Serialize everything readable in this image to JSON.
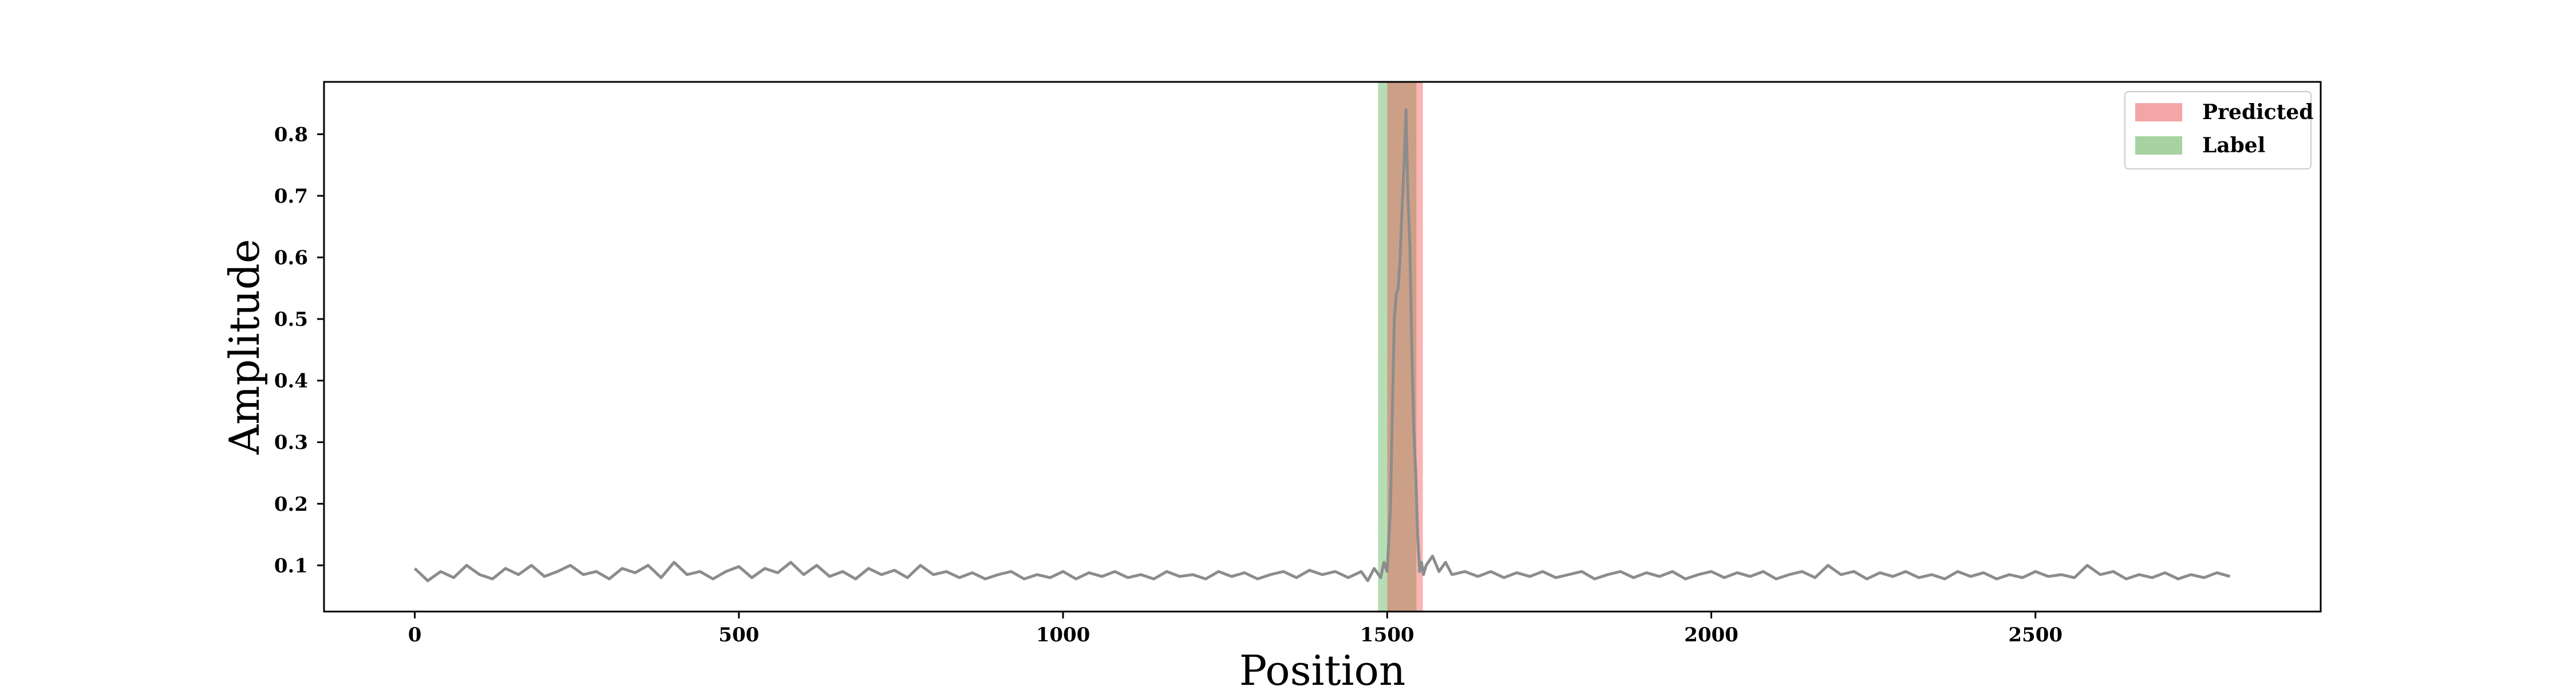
{
  "chart_data": {
    "type": "line",
    "title": "",
    "xlabel": "Position",
    "ylabel": "Amplitude",
    "xlim": [
      -140,
      2940
    ],
    "ylim": [
      0.025,
      0.885
    ],
    "x_ticks": [
      0,
      500,
      1000,
      1500,
      2000,
      2500
    ],
    "y_ticks": [
      0.1,
      0.2,
      0.3,
      0.4,
      0.5,
      0.6,
      0.7,
      0.8
    ],
    "grid": false,
    "legend_position": "upper right",
    "series": [
      {
        "color": "#8c8c8c",
        "x": [
          0,
          20,
          40,
          60,
          80,
          100,
          120,
          140,
          160,
          180,
          200,
          220,
          240,
          260,
          280,
          300,
          320,
          340,
          360,
          380,
          400,
          420,
          440,
          460,
          480,
          500,
          520,
          540,
          560,
          580,
          600,
          620,
          640,
          660,
          680,
          700,
          720,
          740,
          760,
          780,
          800,
          820,
          840,
          860,
          880,
          900,
          920,
          940,
          960,
          980,
          1000,
          1020,
          1040,
          1060,
          1080,
          1100,
          1120,
          1140,
          1160,
          1180,
          1200,
          1220,
          1240,
          1260,
          1280,
          1300,
          1320,
          1340,
          1360,
          1380,
          1400,
          1420,
          1440,
          1460,
          1470,
          1480,
          1490,
          1495,
          1500,
          1505,
          1508,
          1511,
          1514,
          1517,
          1520,
          1523,
          1526,
          1529,
          1532,
          1535,
          1538,
          1541,
          1544,
          1547,
          1550,
          1553,
          1556,
          1560,
          1570,
          1580,
          1590,
          1600,
          1620,
          1640,
          1660,
          1680,
          1700,
          1720,
          1740,
          1760,
          1780,
          1800,
          1820,
          1840,
          1860,
          1880,
          1900,
          1920,
          1940,
          1960,
          1980,
          2000,
          2020,
          2040,
          2060,
          2080,
          2100,
          2120,
          2140,
          2160,
          2180,
          2200,
          2220,
          2240,
          2260,
          2280,
          2300,
          2320,
          2340,
          2360,
          2380,
          2400,
          2420,
          2440,
          2460,
          2480,
          2500,
          2520,
          2540,
          2560,
          2580,
          2600,
          2620,
          2640,
          2660,
          2680,
          2700,
          2720,
          2740,
          2760,
          2780,
          2800
        ],
        "y": [
          0.095,
          0.075,
          0.09,
          0.08,
          0.1,
          0.085,
          0.078,
          0.095,
          0.085,
          0.1,
          0.082,
          0.09,
          0.1,
          0.085,
          0.09,
          0.078,
          0.095,
          0.088,
          0.1,
          0.08,
          0.105,
          0.085,
          0.09,
          0.078,
          0.09,
          0.098,
          0.08,
          0.095,
          0.088,
          0.105,
          0.085,
          0.1,
          0.082,
          0.09,
          0.078,
          0.095,
          0.085,
          0.092,
          0.08,
          0.1,
          0.085,
          0.09,
          0.08,
          0.088,
          0.078,
          0.085,
          0.09,
          0.078,
          0.085,
          0.08,
          0.09,
          0.078,
          0.088,
          0.082,
          0.09,
          0.08,
          0.085,
          0.078,
          0.09,
          0.082,
          0.085,
          0.078,
          0.09,
          0.082,
          0.088,
          0.078,
          0.085,
          0.09,
          0.08,
          0.092,
          0.085,
          0.09,
          0.08,
          0.09,
          0.075,
          0.095,
          0.08,
          0.105,
          0.09,
          0.19,
          0.35,
          0.5,
          0.54,
          0.55,
          0.6,
          0.68,
          0.75,
          0.84,
          0.7,
          0.62,
          0.45,
          0.32,
          0.25,
          0.15,
          0.09,
          0.105,
          0.085,
          0.1,
          0.115,
          0.09,
          0.105,
          0.085,
          0.09,
          0.082,
          0.09,
          0.08,
          0.088,
          0.082,
          0.09,
          0.08,
          0.085,
          0.09,
          0.078,
          0.085,
          0.09,
          0.08,
          0.088,
          0.082,
          0.09,
          0.078,
          0.085,
          0.09,
          0.08,
          0.088,
          0.082,
          0.09,
          0.078,
          0.085,
          0.09,
          0.08,
          0.1,
          0.085,
          0.09,
          0.078,
          0.088,
          0.082,
          0.09,
          0.08,
          0.085,
          0.078,
          0.09,
          0.082,
          0.088,
          0.078,
          0.085,
          0.08,
          0.09,
          0.082,
          0.085,
          0.08,
          0.1,
          0.085,
          0.09,
          0.078,
          0.085,
          0.08,
          0.088,
          0.078,
          0.085,
          0.08,
          0.088,
          0.082
        ]
      }
    ],
    "regions": [
      {
        "name": "Label",
        "color": "#2ca02c",
        "opacity": 0.35,
        "x_start": 1486,
        "x_end": 1545
      },
      {
        "name": "Predicted",
        "color": "#ef4444",
        "opacity": 0.4,
        "x_start": 1500,
        "x_end": 1555
      }
    ],
    "legend": [
      {
        "label": "Predicted",
        "color": "#f4a6a6"
      },
      {
        "label": "Label",
        "color": "#a7d3a1"
      }
    ]
  }
}
